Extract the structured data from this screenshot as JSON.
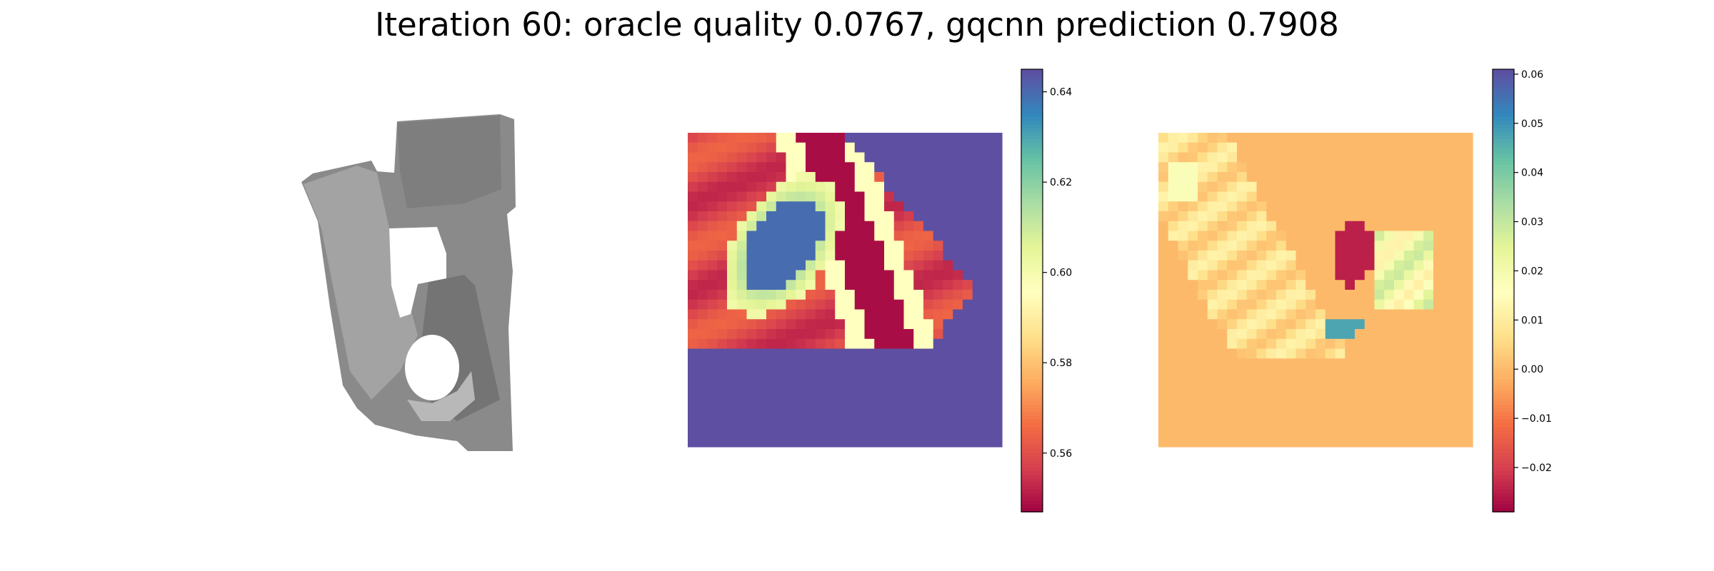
{
  "title": "Iteration 60: oracle quality 0.0767, gqcnn prediction 0.7908",
  "colormap": [
    "#9e0142",
    "#d53e4f",
    "#f46d43",
    "#fdae61",
    "#fee08b",
    "#ffffbf",
    "#e6f598",
    "#abdda4",
    "#66c2a5",
    "#3288bd",
    "#5e4fa2"
  ],
  "depth_image": {
    "background": "#ffffff",
    "object_colors": [
      "#7c7c7c",
      "#8c8c8c",
      "#9a9a9a",
      "#b4b4b4"
    ]
  },
  "chart_data": [
    {
      "type": "heatmap",
      "title": "",
      "grid": false,
      "vmin": 0.547,
      "vmax": 0.645,
      "colorbar_ticks": [
        "0.56",
        "0.58",
        "0.60",
        "0.62",
        "0.64"
      ],
      "colorbar_values": [
        0.56,
        0.58,
        0.6,
        0.62,
        0.64
      ],
      "background_value": 0.645,
      "shape": [
        32,
        32
      ]
    },
    {
      "type": "heatmap",
      "title": "",
      "grid": false,
      "vmin": -0.029,
      "vmax": 0.061,
      "colorbar_ticks": [
        "−0.02",
        "−0.01",
        "0.00",
        "0.01",
        "0.02",
        "0.03",
        "0.04",
        "0.05",
        "0.06"
      ],
      "colorbar_values": [
        -0.02,
        -0.01,
        0.0,
        0.01,
        0.02,
        0.03,
        0.04,
        0.05,
        0.06
      ],
      "background_value": 0.0,
      "shape": [
        32,
        32
      ]
    }
  ]
}
